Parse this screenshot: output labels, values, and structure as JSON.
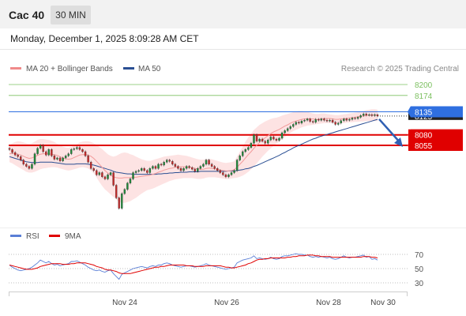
{
  "header": {
    "title": "Cac 40",
    "timeframe": "30 MIN"
  },
  "datetime": "Monday, December 1, 2025 8:09:28 AM CET",
  "legend": {
    "bb_label": "MA 20 + Bollinger Bands",
    "ma50_label": "MA 50",
    "credit": "Research © 2025 Trading Central"
  },
  "colors": {
    "bb": "#f08a8a",
    "ma50": "#2a4f93",
    "resistance": "#7cc060",
    "pivot": "#2f6fe0",
    "support": "#e00000",
    "rsi": "#5a7fd6",
    "rsi_ma": "#e00000"
  },
  "chart_data": {
    "type": "candlestick",
    "price_axis_visible_range": [
      7950,
      8230
    ],
    "levels": [
      {
        "value": 8200,
        "label": "8200",
        "kind": "resistance"
      },
      {
        "value": 8174,
        "label": "8174",
        "kind": "resistance"
      },
      {
        "value": 8135,
        "label": "8135",
        "kind": "pivot"
      },
      {
        "value": 8080,
        "label": "8080",
        "kind": "support"
      },
      {
        "value": 8055,
        "label": "8055",
        "kind": "support"
      }
    ],
    "current_price": 8125,
    "current_price_label": "8125",
    "x_ticks": [
      "Nov 24",
      "Nov 26",
      "Nov 28",
      "Nov 30"
    ],
    "close": [
      8045,
      8038,
      8032,
      8028,
      8020,
      8010,
      8005,
      8000,
      8010,
      8035,
      8048,
      8055,
      8040,
      8032,
      8045,
      8030,
      8022,
      8025,
      8018,
      8025,
      8030,
      8035,
      8045,
      8047,
      8050,
      8045,
      8040,
      8030,
      8015,
      8000,
      7995,
      7985,
      7990,
      7980,
      7975,
      7985,
      7990,
      7960,
      7930,
      7905,
      7940,
      7950,
      7965,
      7975,
      7990,
      7993,
      7995,
      8000,
      7995,
      7990,
      8000,
      8005,
      8000,
      8010,
      8008,
      8015,
      8020,
      8017,
      8010,
      8005,
      8000,
      7995,
      8000,
      8005,
      8002,
      7998,
      7993,
      8000,
      8005,
      8010,
      8020,
      8010,
      8005,
      8000,
      7995,
      7990,
      7985,
      7980,
      7985,
      7990,
      7995,
      8020,
      8030,
      8040,
      8045,
      8050,
      8060,
      8080,
      8065,
      8070,
      8065,
      8060,
      8068,
      8075,
      8070,
      8067,
      8072,
      8085,
      8090,
      8095,
      8100,
      8105,
      8110,
      8108,
      8113,
      8115,
      8118,
      8112,
      8110,
      8117,
      8115,
      8118,
      8115,
      8113,
      8115,
      8110,
      8105,
      8108,
      8114,
      8118,
      8115,
      8117,
      8120,
      8119,
      8122,
      8126,
      8130,
      8127,
      8128,
      8126,
      8128,
      8125
    ],
    "bb_upper": [
      8055,
      8060,
      8063,
      8065,
      8064,
      8062,
      8060,
      8058,
      8060,
      8064,
      8068,
      8070,
      8070,
      8069,
      8068,
      8066,
      8063,
      8059,
      8055,
      8052,
      8050,
      8049,
      8051,
      8054,
      8058,
      8062,
      8064,
      8065,
      8065,
      8063,
      8060,
      8056,
      8051,
      8046,
      8040,
      8034,
      8030,
      8028,
      8030,
      8034,
      8037,
      8038,
      8037,
      8034,
      8032,
      8028,
      8025,
      8022,
      8020,
      8018,
      8018,
      8020,
      8022,
      8024,
      8026,
      8028,
      8029,
      8030,
      8031,
      8032,
      8033,
      8032,
      8031,
      8030,
      8028,
      8026,
      8024,
      8022,
      8021,
      8021,
      8022,
      8023,
      8022,
      8020,
      8018,
      8016,
      8014,
      8013,
      8014,
      8015,
      8017,
      8028,
      8040,
      8052,
      8064,
      8074,
      8082,
      8092,
      8098,
      8104,
      8108,
      8112,
      8115,
      8118,
      8120,
      8121,
      8123,
      8126,
      8128,
      8130,
      8132,
      8134,
      8136,
      8137,
      8137,
      8136,
      8135,
      8133,
      8131,
      8130,
      8130,
      8131,
      8131,
      8130,
      8129,
      8128,
      8127,
      8127,
      8128,
      8129,
      8130,
      8131,
      8132,
      8133,
      8134,
      8135,
      8137,
      8139,
      8140,
      8141,
      8141,
      8140
    ],
    "bb_lower": [
      8015,
      8012,
      8008,
      8004,
      8000,
      7996,
      7992,
      7990,
      7990,
      7992,
      7995,
      7998,
      8000,
      8001,
      8002,
      8003,
      8003,
      8002,
      8000,
      7998,
      7996,
      7995,
      7996,
      7998,
      8000,
      8002,
      8003,
      8002,
      8000,
      7995,
      7988,
      7978,
      7968,
      7958,
      7950,
      7944,
      7938,
      7932,
      7926,
      7920,
      7918,
      7918,
      7920,
      7922,
      7926,
      7930,
      7935,
      7940,
      7944,
      7948,
      7950,
      7952,
      7955,
      7958,
      7961,
      7964,
      7967,
      7970,
      7972,
      7974,
      7975,
      7976,
      7977,
      7977,
      7977,
      7977,
      7976,
      7975,
      7975,
      7976,
      7978,
      7979,
      7979,
      7979,
      7978,
      7977,
      7976,
      7975,
      7975,
      7976,
      7977,
      7978,
      7980,
      7983,
      7987,
      7992,
      7998,
      8005,
      8012,
      8020,
      8028,
      8035,
      8042,
      8048,
      8054,
      8059,
      8064,
      8070,
      8075,
      8080,
      8085,
      8089,
      8092,
      8095,
      8098,
      8100,
      8102,
      8103,
      8104,
      8105,
      8106,
      8107,
      8108,
      8108,
      8108,
      8108,
      8108,
      8108,
      8108,
      8108,
      8109,
      8110,
      8110,
      8111,
      8111,
      8112,
      8112,
      8113,
      8113,
      8113,
      8113,
      8113
    ],
    "ma20": [
      8035,
      8036,
      8035,
      8034,
      8032,
      8029,
      8026,
      8024,
      8025,
      8028,
      8031,
      8034,
      8035,
      8035,
      8035,
      8034,
      8033,
      8031,
      8028,
      8025,
      8023,
      8022,
      8023,
      8026,
      8029,
      8032,
      8033,
      8033,
      8032,
      8029,
      8024,
      8017,
      8010,
      8002,
      7995,
      7989,
      7984,
      7980,
      7978,
      7977,
      7977,
      7978,
      7978,
      7978,
      7979,
      7979,
      7980,
      7981,
      7982,
      7983,
      7984,
      7986,
      7988,
      7991,
      7993,
      7996,
      7998,
      8000,
      8001,
      8003,
      8004,
      8004,
      8004,
      8003,
      8003,
      8002,
      8000,
      7999,
      7998,
      7998,
      8000,
      8001,
      8000,
      7999,
      7998,
      7996,
      7995,
      7994,
      7994,
      7995,
      7997,
      8003,
      8010,
      8017,
      8025,
      8033,
      8040,
      8048,
      8055,
      8062,
      8068,
      8073,
      8078,
      8083,
      8087,
      8090,
      8093,
      8097,
      8101,
      8104,
      8108,
      8111,
      8113,
      8115,
      8117,
      8118,
      8118,
      8118,
      8118,
      8117,
      8117,
      8118,
      8119,
      8119,
      8119,
      8118,
      8117,
      8117,
      8118,
      8118,
      8119,
      8120,
      8121,
      8122,
      8123,
      8124,
      8125,
      8126,
      8127,
      8127,
      8127,
      8127
    ],
    "ma50": [
      8028,
      8026,
      8024,
      8022,
      8020,
      8018,
      8016,
      8015,
      8014,
      8014,
      8014,
      8015,
      8015,
      8015,
      8015,
      8015,
      8014,
      8013,
      8012,
      8011,
      8010,
      8010,
      8010,
      8010,
      8011,
      8011,
      8011,
      8011,
      8010,
      8009,
      8008,
      8006,
      8004,
      8002,
      8000,
      7998,
      7996,
      7993,
      7991,
      7990,
      7989,
      7988,
      7987,
      7987,
      7986,
      7986,
      7986,
      7986,
      7986,
      7986,
      7986,
      7986,
      7986,
      7987,
      7987,
      7988,
      7988,
      7989,
      7989,
      7990,
      7990,
      7991,
      7991,
      7991,
      7992,
      7992,
      7992,
      7992,
      7993,
      7993,
      7993,
      7993,
      7993,
      7993,
      7993,
      7993,
      7993,
      7993,
      7994,
      7994,
      7994,
      7995,
      7996,
      7997,
      7999,
      8000,
      8002,
      8005,
      8007,
      8010,
      8013,
      8016,
      8019,
      8022,
      8025,
      8028,
      8031,
      8035,
      8038,
      8042,
      8045,
      8049,
      8052,
      8055,
      8058,
      8061,
      8064,
      8067,
      8070,
      8072,
      8075,
      8077,
      8079,
      8081,
      8083,
      8085,
      8087,
      8089,
      8091,
      8093,
      8095,
      8097,
      8099,
      8101,
      8103,
      8105,
      8107,
      8109,
      8111,
      8113,
      8115,
      8117
    ],
    "forecast_arrow": {
      "from": 8125,
      "to": 8055
    },
    "rsi": {
      "levels": [
        70,
        50,
        30
      ],
      "level_labels": [
        "70",
        "50",
        "30"
      ],
      "legend": [
        "RSI",
        "9MA"
      ],
      "values": [
        55,
        52,
        50,
        48,
        47,
        48,
        49,
        50,
        52,
        55,
        58,
        62,
        60,
        58,
        60,
        57,
        55,
        56,
        54,
        55,
        56,
        57,
        60,
        60,
        61,
        59,
        57,
        55,
        52,
        50,
        48,
        47,
        48,
        46,
        45,
        47,
        48,
        43,
        39,
        35,
        42,
        44,
        46,
        48,
        50,
        51,
        52,
        53,
        52,
        51,
        53,
        54,
        53,
        55,
        55,
        57,
        58,
        57,
        55,
        54,
        53,
        52,
        53,
        54,
        54,
        53,
        52,
        53,
        54,
        55,
        57,
        55,
        54,
        53,
        52,
        51,
        50,
        49,
        50,
        51,
        52,
        58,
        60,
        62,
        63,
        64,
        65,
        68,
        64,
        65,
        64,
        63,
        64,
        66,
        64,
        63,
        64,
        67,
        68,
        68,
        69,
        70,
        71,
        70,
        70,
        69,
        69,
        67,
        66,
        67,
        66,
        67,
        66,
        65,
        66,
        64,
        63,
        64,
        66,
        68,
        66,
        65,
        66,
        66,
        67,
        68,
        69,
        66,
        67,
        63,
        64,
        62
      ],
      "ma9": [
        55,
        54,
        53,
        52,
        51,
        50,
        49,
        49,
        49,
        50,
        51,
        53,
        54,
        55,
        56,
        57,
        57,
        57,
        57,
        56,
        56,
        56,
        57,
        57,
        58,
        58,
        58,
        58,
        57,
        56,
        55,
        53,
        52,
        51,
        49,
        48,
        48,
        47,
        46,
        44,
        43,
        43,
        43,
        43,
        44,
        45,
        46,
        47,
        48,
        49,
        50,
        51,
        52,
        52,
        53,
        53,
        54,
        55,
        55,
        55,
        55,
        55,
        55,
        54,
        54,
        54,
        53,
        53,
        53,
        53,
        54,
        54,
        54,
        54,
        54,
        54,
        53,
        52,
        52,
        51,
        51,
        52,
        53,
        54,
        55,
        57,
        58,
        60,
        62,
        63,
        63,
        64,
        64,
        65,
        65,
        65,
        65,
        65,
        65,
        66,
        66,
        67,
        67,
        68,
        68,
        68,
        69,
        69,
        69,
        68,
        68,
        67,
        67,
        67,
        67,
        66,
        66,
        66,
        66,
        66,
        66,
        66,
        66,
        66,
        66,
        66,
        67,
        67,
        67,
        66,
        66,
        65
      ]
    }
  }
}
